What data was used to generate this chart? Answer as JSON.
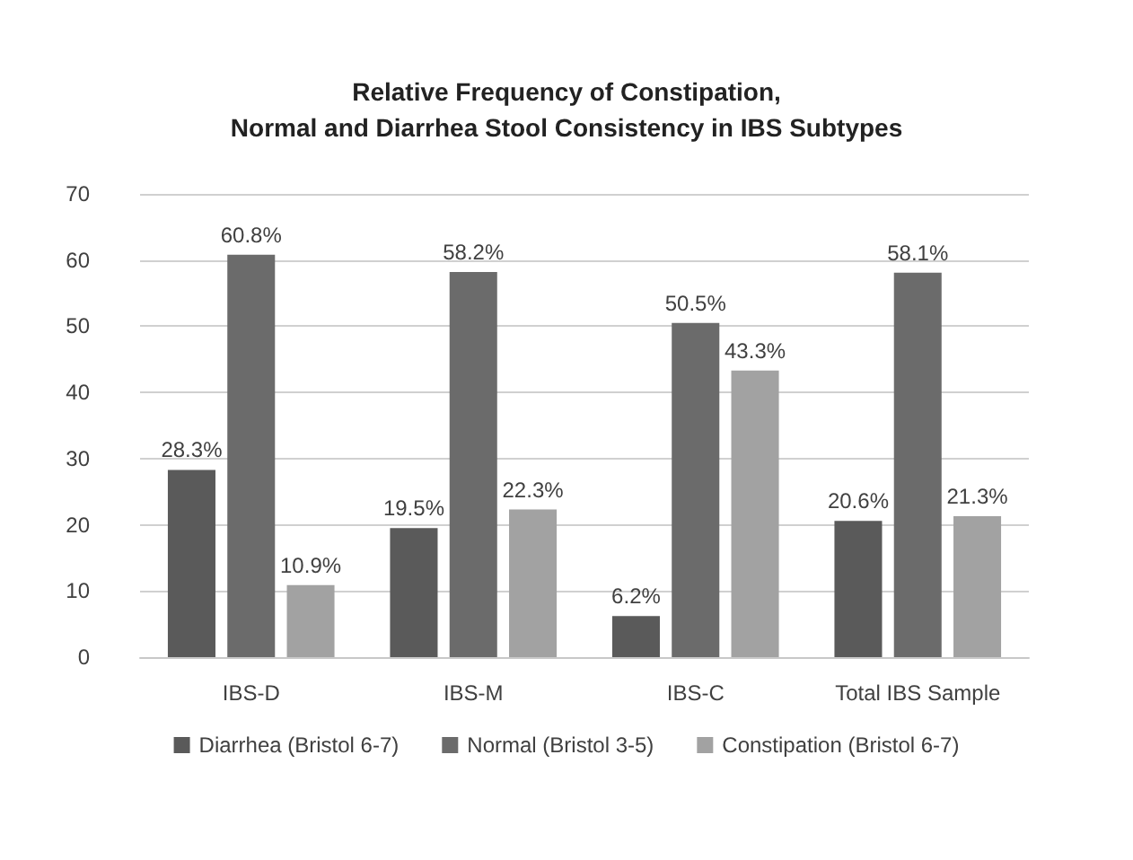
{
  "chart_data": {
    "type": "bar",
    "title": "Relative Frequency of Constipation,\nNormal and Diarrhea Stool Consistency in IBS Subtypes",
    "categories": [
      "IBS-D",
      "IBS-M",
      "IBS-C",
      "Total IBS Sample"
    ],
    "series": [
      {
        "name": "Diarrhea (Bristol 6-7)",
        "color": "#5a5a5a",
        "values": [
          28.3,
          19.5,
          6.2,
          20.6
        ],
        "value_labels": [
          "28.3%",
          "19.5%",
          "6.2%",
          "20.6%"
        ]
      },
      {
        "name": "Normal (Bristol 3-5)",
        "color": "#6b6b6b",
        "values": [
          60.8,
          58.2,
          50.5,
          58.1
        ],
        "value_labels": [
          "60.8%",
          "58.2%",
          "50.5%",
          "58.1%"
        ]
      },
      {
        "name": "Constipation (Bristol 6-7)",
        "color": "#a2a2a2",
        "values": [
          10.9,
          22.3,
          43.3,
          21.3
        ],
        "value_labels": [
          "10.9%",
          "22.3%",
          "43.3%",
          "21.3%"
        ]
      }
    ],
    "ylim": [
      0,
      70
    ],
    "yticks": [
      0,
      10,
      20,
      30,
      40,
      50,
      60,
      70
    ],
    "grid": "y",
    "legend": "bottom"
  }
}
